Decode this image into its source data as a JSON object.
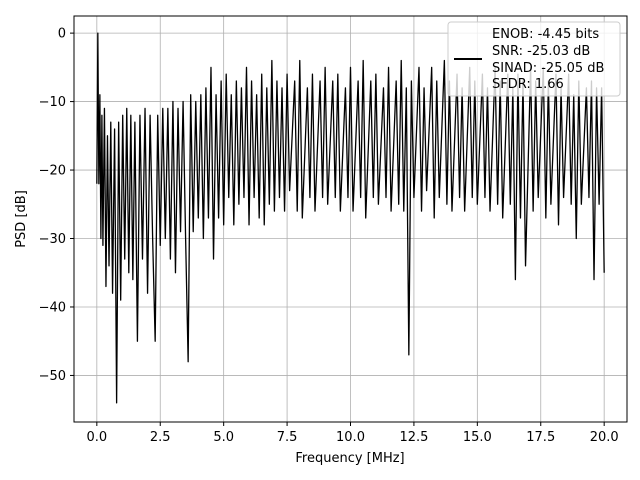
{
  "chart_data": {
    "type": "line",
    "title": "",
    "xlabel": "Frequency [MHz]",
    "ylabel": "PSD [dB]",
    "xlim": [
      -0.9,
      20.9
    ],
    "ylim": [
      -56.8,
      2.5
    ],
    "grid": true,
    "legend_placement": "top-right",
    "x_ticks": [
      {
        "value": 0.0,
        "label": "0.0"
      },
      {
        "value": 2.5,
        "label": "2.5"
      },
      {
        "value": 5.0,
        "label": "5.0"
      },
      {
        "value": 7.5,
        "label": "7.5"
      },
      {
        "value": 10.0,
        "label": "10.0"
      },
      {
        "value": 12.5,
        "label": "12.5"
      },
      {
        "value": 15.0,
        "label": "15.0"
      },
      {
        "value": 17.5,
        "label": "17.5"
      },
      {
        "value": 20.0,
        "label": "20.0"
      }
    ],
    "y_ticks": [
      {
        "value": 0,
        "label": "0"
      },
      {
        "value": -10,
        "label": "−10"
      },
      {
        "value": -20,
        "label": "−20"
      },
      {
        "value": -30,
        "label": "−30"
      },
      {
        "value": -40,
        "label": "−40"
      },
      {
        "value": -50,
        "label": "−50"
      }
    ],
    "series_color": "#000000",
    "legend_entries": [
      "ENOB: -4.45 bits",
      "SNR: -25.03 dB",
      "SINAD: -25.05 dB",
      "SFDR: 1.66"
    ],
    "series": [
      {
        "points": [
          [
            0.0,
            -22
          ],
          [
            0.04,
            0.0
          ],
          [
            0.08,
            -22
          ],
          [
            0.12,
            -9
          ],
          [
            0.16,
            -30
          ],
          [
            0.2,
            -12
          ],
          [
            0.24,
            -31
          ],
          [
            0.3,
            -11
          ],
          [
            0.36,
            -37
          ],
          [
            0.42,
            -15
          ],
          [
            0.48,
            -34
          ],
          [
            0.55,
            -13
          ],
          [
            0.62,
            -38
          ],
          [
            0.7,
            -14
          ],
          [
            0.78,
            -54
          ],
          [
            0.86,
            -13
          ],
          [
            0.94,
            -39
          ],
          [
            1.02,
            -12
          ],
          [
            1.1,
            -33
          ],
          [
            1.18,
            -11
          ],
          [
            1.26,
            -35
          ],
          [
            1.34,
            -12
          ],
          [
            1.42,
            -36
          ],
          [
            1.5,
            -13
          ],
          [
            1.6,
            -45
          ],
          [
            1.7,
            -12
          ],
          [
            1.8,
            -33
          ],
          [
            1.9,
            -11
          ],
          [
            2.0,
            -38
          ],
          [
            2.1,
            -12
          ],
          [
            2.2,
            -30
          ],
          [
            2.3,
            -45
          ],
          [
            2.4,
            -12
          ],
          [
            2.5,
            -31
          ],
          [
            2.6,
            -11
          ],
          [
            2.7,
            -30
          ],
          [
            2.8,
            -11
          ],
          [
            2.9,
            -33
          ],
          [
            3.0,
            -10
          ],
          [
            3.1,
            -35
          ],
          [
            3.2,
            -11
          ],
          [
            3.3,
            -29
          ],
          [
            3.4,
            -10
          ],
          [
            3.5,
            -30
          ],
          [
            3.6,
            -48
          ],
          [
            3.7,
            -9
          ],
          [
            3.8,
            -29
          ],
          [
            3.9,
            -10
          ],
          [
            4.0,
            -27
          ],
          [
            4.1,
            -9
          ],
          [
            4.2,
            -30
          ],
          [
            4.3,
            -8
          ],
          [
            4.4,
            -27
          ],
          [
            4.5,
            -5
          ],
          [
            4.6,
            -33
          ],
          [
            4.7,
            -9
          ],
          [
            4.8,
            -27
          ],
          [
            4.9,
            -7
          ],
          [
            5.0,
            -28
          ],
          [
            5.1,
            -6
          ],
          [
            5.2,
            -24
          ],
          [
            5.3,
            -9
          ],
          [
            5.4,
            -28
          ],
          [
            5.5,
            -7
          ],
          [
            5.6,
            -25
          ],
          [
            5.7,
            -8
          ],
          [
            5.8,
            -24
          ],
          [
            5.9,
            -5
          ],
          [
            6.0,
            -28
          ],
          [
            6.1,
            -7
          ],
          [
            6.2,
            -24
          ],
          [
            6.3,
            -9
          ],
          [
            6.4,
            -27
          ],
          [
            6.5,
            -6
          ],
          [
            6.6,
            -28
          ],
          [
            6.7,
            -8
          ],
          [
            6.8,
            -25
          ],
          [
            6.9,
            -4
          ],
          [
            7.0,
            -26
          ],
          [
            7.1,
            -7
          ],
          [
            7.2,
            -24
          ],
          [
            7.3,
            -8
          ],
          [
            7.4,
            -26
          ],
          [
            7.5,
            -6
          ],
          [
            7.6,
            -23
          ],
          [
            7.8,
            -7
          ],
          [
            7.9,
            -26
          ],
          [
            8.0,
            -4
          ],
          [
            8.1,
            -27
          ],
          [
            8.3,
            -8
          ],
          [
            8.4,
            -24
          ],
          [
            8.5,
            -6
          ],
          [
            8.6,
            -26
          ],
          [
            8.8,
            -7
          ],
          [
            8.9,
            -24
          ],
          [
            9.0,
            -5
          ],
          [
            9.1,
            -25
          ],
          [
            9.3,
            -7
          ],
          [
            9.4,
            -24
          ],
          [
            9.5,
            -6
          ],
          [
            9.6,
            -26
          ],
          [
            9.8,
            -8
          ],
          [
            9.9,
            -24
          ],
          [
            10.0,
            -5
          ],
          [
            10.1,
            -26
          ],
          [
            10.3,
            -7
          ],
          [
            10.4,
            -24
          ],
          [
            10.5,
            -4
          ],
          [
            10.6,
            -27
          ],
          [
            10.8,
            -7
          ],
          [
            10.9,
            -24
          ],
          [
            11.0,
            -6
          ],
          [
            11.1,
            -25
          ],
          [
            11.3,
            -8
          ],
          [
            11.4,
            -24
          ],
          [
            11.5,
            -5
          ],
          [
            11.6,
            -26
          ],
          [
            11.8,
            -7
          ],
          [
            11.9,
            -25
          ],
          [
            12.0,
            -4
          ],
          [
            12.1,
            -26
          ],
          [
            12.2,
            -8
          ],
          [
            12.3,
            -47
          ],
          [
            12.4,
            -7
          ],
          [
            12.5,
            -24
          ],
          [
            12.7,
            -5
          ],
          [
            12.8,
            -26
          ],
          [
            12.9,
            -8
          ],
          [
            13.0,
            -23
          ],
          [
            13.2,
            -5
          ],
          [
            13.3,
            -27
          ],
          [
            13.4,
            -7
          ],
          [
            13.5,
            -24
          ],
          [
            13.7,
            -4
          ],
          [
            13.8,
            -25
          ],
          [
            13.9,
            -7
          ],
          [
            14.0,
            -26
          ],
          [
            14.2,
            -6
          ],
          [
            14.3,
            -24
          ],
          [
            14.4,
            -8
          ],
          [
            14.5,
            -26
          ],
          [
            14.7,
            -5
          ],
          [
            14.8,
            -24
          ],
          [
            14.9,
            -7
          ],
          [
            15.0,
            -25
          ],
          [
            15.2,
            -6
          ],
          [
            15.3,
            -24
          ],
          [
            15.4,
            -8
          ],
          [
            15.5,
            -26
          ],
          [
            15.7,
            -5
          ],
          [
            15.8,
            -25
          ],
          [
            15.9,
            -7
          ],
          [
            16.0,
            -27
          ],
          [
            16.2,
            -6
          ],
          [
            16.3,
            -25
          ],
          [
            16.4,
            -8
          ],
          [
            16.5,
            -36
          ],
          [
            16.6,
            -6
          ],
          [
            16.7,
            -27
          ],
          [
            16.8,
            -7
          ],
          [
            16.9,
            -34
          ],
          [
            17.1,
            -5
          ],
          [
            17.2,
            -26
          ],
          [
            17.3,
            -7
          ],
          [
            17.4,
            -24
          ],
          [
            17.6,
            -5
          ],
          [
            17.7,
            -27
          ],
          [
            17.8,
            -7
          ],
          [
            17.9,
            -25
          ],
          [
            18.1,
            -6
          ],
          [
            18.2,
            -28
          ],
          [
            18.3,
            -8
          ],
          [
            18.4,
            -24
          ],
          [
            18.6,
            -6
          ],
          [
            18.7,
            -25
          ],
          [
            18.8,
            -9
          ],
          [
            18.9,
            -30
          ],
          [
            19.0,
            -7
          ],
          [
            19.1,
            -25
          ],
          [
            19.3,
            -8
          ],
          [
            19.4,
            -24
          ],
          [
            19.5,
            -7
          ],
          [
            19.6,
            -36
          ],
          [
            19.7,
            -8
          ],
          [
            19.8,
            -25
          ],
          [
            19.9,
            -8
          ],
          [
            20.0,
            -35
          ]
        ]
      }
    ]
  }
}
